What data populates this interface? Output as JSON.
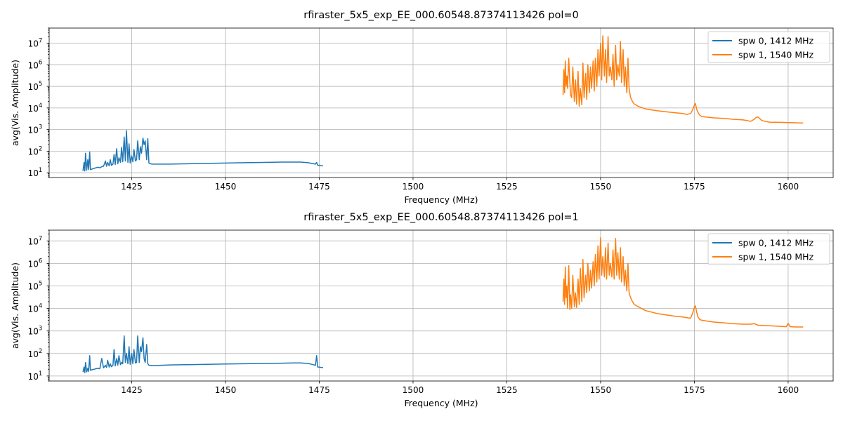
{
  "chart_data": [
    {
      "type": "line",
      "title": "rfiraster_5x5_exp_EE_000.60548.87374113426 pol=0",
      "xlabel": "Frequency (MHz)",
      "ylabel": "avg(Vis. Amplitude)",
      "yscale": "log",
      "xlim": [
        1403,
        1612
      ],
      "ylim": [
        6,
        50000000
      ],
      "xticks": [
        1425,
        1450,
        1475,
        1500,
        1525,
        1550,
        1575,
        1600
      ],
      "xtick_labels": [
        "1425",
        "1450",
        "1475",
        "1500",
        "1525",
        "1550",
        "1575",
        "1600"
      ],
      "yticks": [
        10,
        100,
        1000,
        10000,
        100000,
        1000000,
        10000000
      ],
      "ytick_labels": [
        [
          "10",
          "1"
        ],
        [
          "10",
          "2"
        ],
        [
          "10",
          "3"
        ],
        [
          "10",
          "4"
        ],
        [
          "10",
          "5"
        ],
        [
          "10",
          "6"
        ],
        [
          "10",
          "7"
        ]
      ],
      "grid": true,
      "legend_position": "upper right",
      "series": [
        {
          "name": "spw 0, 1412 MHz",
          "color": "#1f77b4",
          "x": [
            1412,
            1412.3,
            1412.5,
            1412.7,
            1413,
            1413.3,
            1413.5,
            1413.8,
            1414,
            1414.5,
            1415,
            1415.5,
            1416,
            1416.5,
            1417,
            1417.5,
            1418,
            1418.3,
            1418.6,
            1419,
            1419.3,
            1419.6,
            1420,
            1420.3,
            1420.6,
            1421,
            1421.3,
            1421.6,
            1422,
            1422.3,
            1422.6,
            1423,
            1423.3,
            1423.6,
            1424,
            1424.3,
            1424.6,
            1425,
            1425.3,
            1425.6,
            1426,
            1426.3,
            1426.6,
            1427,
            1427.3,
            1427.6,
            1428,
            1428.3,
            1428.6,
            1429,
            1429.3,
            1429.6,
            1430,
            1430.5,
            1431,
            1433,
            1435,
            1440,
            1445,
            1450,
            1455,
            1460,
            1465,
            1468,
            1470,
            1472,
            1473,
            1474,
            1474.3,
            1474.6,
            1475,
            1475.5,
            1476
          ],
          "y": [
            12,
            30,
            12,
            80,
            13,
            40,
            14,
            90,
            14,
            15,
            16,
            17,
            18,
            17,
            19,
            20,
            35,
            20,
            30,
            21,
            40,
            22,
            25,
            70,
            24,
            130,
            26,
            50,
            30,
            150,
            32,
            450,
            35,
            900,
            30,
            220,
            28,
            60,
            32,
            120,
            35,
            40,
            300,
            40,
            160,
            80,
            400,
            200,
            300,
            40,
            380,
            28,
            26,
            25,
            25,
            25,
            25,
            26,
            27,
            28,
            29,
            30,
            31,
            31,
            31,
            29,
            27,
            25,
            30,
            22,
            22,
            21,
            21
          ]
        },
        {
          "name": "spw 1, 1540 MHz",
          "color": "#ff7f0e",
          "x": [
            1540,
            1540.2,
            1540.4,
            1540.6,
            1540.8,
            1541,
            1541.2,
            1541.5,
            1541.8,
            1542,
            1542.3,
            1542.6,
            1543,
            1543.3,
            1543.6,
            1544,
            1544.3,
            1544.6,
            1545,
            1545.3,
            1545.6,
            1546,
            1546.3,
            1546.6,
            1547,
            1547.3,
            1547.6,
            1548,
            1548.3,
            1548.6,
            1549,
            1549.3,
            1549.6,
            1550,
            1550.3,
            1550.6,
            1551,
            1551.3,
            1551.6,
            1552,
            1552.3,
            1552.6,
            1553,
            1553.3,
            1553.6,
            1554,
            1554.3,
            1554.6,
            1555,
            1555.3,
            1555.6,
            1556,
            1556.3,
            1556.6,
            1557,
            1557.3,
            1557.6,
            1558,
            1558.5,
            1559,
            1560,
            1562,
            1565,
            1568,
            1570,
            1572,
            1573,
            1574,
            1574.5,
            1575,
            1575.3,
            1575.6,
            1576,
            1576.5,
            1577,
            1578,
            1580,
            1583,
            1585,
            1588,
            1589,
            1590,
            1591,
            1591.5,
            1592,
            1593,
            1595,
            1598,
            1600,
            1602,
            1604
          ],
          "y": [
            40000,
            600000,
            50000,
            1500000,
            100000,
            300000,
            80000,
            2000000,
            150000,
            40000,
            30000,
            800000,
            20000,
            200000,
            15000,
            500000,
            12000,
            80000,
            14000,
            1200000,
            30000,
            400000,
            25000,
            1000000,
            50000,
            800000,
            80000,
            1500000,
            60000,
            2000000,
            100000,
            5000000,
            300000,
            10000000,
            200000,
            22000000,
            300000,
            5000000,
            150000,
            20000000,
            300000,
            800000,
            200000,
            3000000,
            100000,
            8000000,
            200000,
            1000000,
            300000,
            12000000,
            150000,
            5000000,
            100000,
            800000,
            50000,
            2000000,
            80000,
            30000,
            20000,
            15000,
            12000,
            9000,
            7500,
            6500,
            6000,
            5500,
            5000,
            5500,
            8000,
            13000,
            16000,
            9000,
            6000,
            4500,
            4000,
            3800,
            3500,
            3300,
            3000,
            2800,
            2600,
            2400,
            3000,
            3700,
            3800,
            2600,
            2200,
            2150,
            2100,
            2050,
            2000
          ]
        }
      ]
    },
    {
      "type": "line",
      "title": "rfiraster_5x5_exp_EE_000.60548.87374113426 pol=1",
      "xlabel": "Frequency (MHz)",
      "ylabel": "avg(Vis. Amplitude)",
      "yscale": "log",
      "xlim": [
        1403,
        1612
      ],
      "ylim": [
        6,
        30000000
      ],
      "xticks": [
        1425,
        1450,
        1475,
        1500,
        1525,
        1550,
        1575,
        1600
      ],
      "xtick_labels": [
        "1425",
        "1450",
        "1475",
        "1500",
        "1525",
        "1550",
        "1575",
        "1600"
      ],
      "yticks": [
        10,
        100,
        1000,
        10000,
        100000,
        1000000,
        10000000
      ],
      "ytick_labels": [
        [
          "10",
          "1"
        ],
        [
          "10",
          "2"
        ],
        [
          "10",
          "3"
        ],
        [
          "10",
          "4"
        ],
        [
          "10",
          "5"
        ],
        [
          "10",
          "6"
        ],
        [
          "10",
          "7"
        ]
      ],
      "grid": true,
      "legend_position": "upper right",
      "series": [
        {
          "name": "spw 0, 1412 MHz",
          "color": "#1f77b4",
          "x": [
            1412,
            1412.3,
            1412.5,
            1412.7,
            1413,
            1413.3,
            1413.5,
            1413.8,
            1414,
            1414.5,
            1415,
            1415.5,
            1416,
            1416.5,
            1417,
            1417.5,
            1418,
            1418.3,
            1418.6,
            1419,
            1419.3,
            1419.6,
            1420,
            1420.3,
            1420.6,
            1421,
            1421.3,
            1421.6,
            1422,
            1422.3,
            1422.6,
            1423,
            1423.3,
            1423.6,
            1424,
            1424.3,
            1424.6,
            1425,
            1425.3,
            1425.6,
            1426,
            1426.3,
            1426.6,
            1427,
            1427.3,
            1427.6,
            1428,
            1428.3,
            1428.6,
            1429,
            1429.3,
            1429.6,
            1430,
            1430.5,
            1431,
            1433,
            1435,
            1440,
            1445,
            1450,
            1455,
            1460,
            1465,
            1468,
            1470,
            1472,
            1473,
            1474,
            1474.3,
            1474.6,
            1475,
            1475.5,
            1476
          ],
          "y": [
            15,
            25,
            14,
            40,
            15,
            22,
            16,
            80,
            18,
            19,
            20,
            21,
            22,
            21,
            60,
            23,
            30,
            24,
            50,
            25,
            35,
            26,
            30,
            150,
            28,
            60,
            30,
            80,
            32,
            40,
            35,
            600,
            40,
            100,
            35,
            200,
            33,
            100,
            35,
            150,
            38,
            40,
            600,
            40,
            200,
            120,
            500,
            60,
            40,
            250,
            35,
            30,
            30,
            29,
            29,
            30,
            31,
            32,
            33,
            34,
            35,
            36,
            37,
            38,
            38,
            36,
            33,
            30,
            80,
            25,
            25,
            24,
            24
          ]
        },
        {
          "name": "spw 1, 1540 MHz",
          "color": "#ff7f0e",
          "x": [
            1540,
            1540.2,
            1540.4,
            1540.6,
            1540.8,
            1541,
            1541.2,
            1541.5,
            1541.8,
            1542,
            1542.3,
            1542.6,
            1543,
            1543.3,
            1543.6,
            1544,
            1544.3,
            1544.6,
            1545,
            1545.3,
            1545.6,
            1546,
            1546.3,
            1546.6,
            1547,
            1547.3,
            1547.6,
            1548,
            1548.3,
            1548.6,
            1549,
            1549.3,
            1549.6,
            1550,
            1550.3,
            1550.6,
            1551,
            1551.3,
            1551.6,
            1552,
            1552.3,
            1552.6,
            1553,
            1553.3,
            1553.6,
            1554,
            1554.3,
            1554.6,
            1555,
            1555.3,
            1555.6,
            1556,
            1556.3,
            1556.6,
            1557,
            1557.3,
            1557.6,
            1558,
            1558.5,
            1559,
            1560,
            1562,
            1565,
            1568,
            1570,
            1572,
            1572.5,
            1573,
            1574,
            1574.5,
            1575,
            1575.3,
            1575.6,
            1576,
            1576.5,
            1577,
            1578,
            1580,
            1583,
            1585,
            1588,
            1590,
            1591,
            1592,
            1595,
            1598,
            1599.5,
            1600,
            1600.5,
            1602,
            1604
          ],
          "y": [
            20000,
            200000,
            15000,
            700000,
            30000,
            100000,
            10000,
            800000,
            9000,
            40000,
            10000,
            300000,
            12000,
            50000,
            11000,
            200000,
            15000,
            600000,
            20000,
            1500000,
            30000,
            300000,
            50000,
            1000000,
            60000,
            500000,
            80000,
            1200000,
            100000,
            2500000,
            150000,
            6000000,
            200000,
            14000000,
            300000,
            2000000,
            250000,
            5000000,
            200000,
            8000000,
            300000,
            1000000,
            250000,
            4000000,
            200000,
            13000000,
            300000,
            3000000,
            200000,
            5000000,
            150000,
            2000000,
            100000,
            500000,
            60000,
            1000000,
            50000,
            30000,
            20000,
            15000,
            12000,
            8000,
            6000,
            5000,
            4500,
            4200,
            4000,
            3900,
            3700,
            6000,
            11000,
            13000,
            7000,
            4000,
            3200,
            3000,
            2800,
            2500,
            2300,
            2100,
            2000,
            2000,
            2100,
            1800,
            1700,
            1600,
            1550,
            2200,
            1550,
            1500,
            1500
          ]
        }
      ]
    }
  ]
}
